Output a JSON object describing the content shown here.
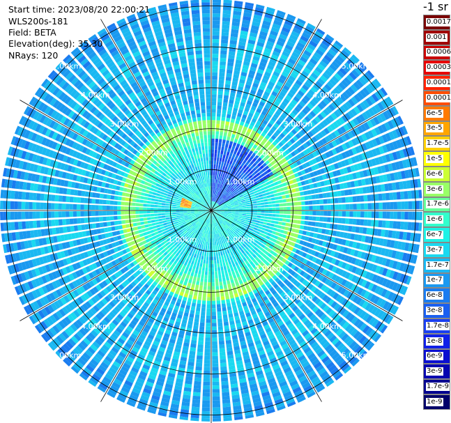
{
  "header": {
    "start_time": "Start time: 2023/08/20 22:00:21",
    "instrument": "WLS200s-181",
    "field": "Field: BETA",
    "elevation": "Elevation(deg): 35.30",
    "nrays": "NRays: 120"
  },
  "colorbar": {
    "unit_label": "-1 sr",
    "entries": [
      {
        "label": "0.0017",
        "color": "#7a0000"
      },
      {
        "label": "0.001",
        "color": "#a00000"
      },
      {
        "label": "0.0006",
        "color": "#c80000"
      },
      {
        "label": "0.0003",
        "color": "#e60000"
      },
      {
        "label": "0.00017",
        "color": "#ff2200"
      },
      {
        "label": "0.0001",
        "color": "#ff4d00"
      },
      {
        "label": "6e-5",
        "color": "#ff7a00"
      },
      {
        "label": "3e-5",
        "color": "#ffa500"
      },
      {
        "label": "1.7e-5",
        "color": "#ffd000"
      },
      {
        "label": "1e-5",
        "color": "#ffff00"
      },
      {
        "label": "6e-6",
        "color": "#ccff33"
      },
      {
        "label": "3e-6",
        "color": "#99ff66"
      },
      {
        "label": "1.7e-6",
        "color": "#66ff99"
      },
      {
        "label": "1e-6",
        "color": "#33ffcc"
      },
      {
        "label": "6e-7",
        "color": "#1ef2e6"
      },
      {
        "label": "3e-7",
        "color": "#1ad9f0"
      },
      {
        "label": "1.7e-7",
        "color": "#1ab8f2"
      },
      {
        "label": "1e-7",
        "color": "#1a99f0"
      },
      {
        "label": "6e-8",
        "color": "#1a7cf0"
      },
      {
        "label": "3e-8",
        "color": "#1a5ff0"
      },
      {
        "label": "1.7e-8",
        "color": "#1a3ff0"
      },
      {
        "label": "1e-8",
        "color": "#1020e8"
      },
      {
        "label": "6e-9",
        "color": "#0a0fd0"
      },
      {
        "label": "3e-9",
        "color": "#0505b0"
      },
      {
        "label": "1.7e-9",
        "color": "#030390"
      },
      {
        "label": "1e-9",
        "color": "#02026a"
      }
    ]
  },
  "chart_data": {
    "type": "heatmap",
    "projection": "polar PPI",
    "field": "BETA",
    "elevation_deg": 35.3,
    "n_rays": 120,
    "range_rings_km": [
      1,
      2,
      3,
      4,
      5
    ],
    "ring_labels": [
      "1.00km",
      "2.00km",
      "3.00km",
      "4.00km",
      "5.00km"
    ],
    "max_range_km": 5.1,
    "azimuth_lines_deg": [
      0,
      30,
      60,
      90,
      120,
      150,
      180,
      210,
      240,
      270,
      300,
      330
    ],
    "range_profile": [
      {
        "range_km": 0.5,
        "value": "6e-7"
      },
      {
        "range_km": 1.0,
        "value": "3e-7"
      },
      {
        "range_km": 1.5,
        "value": "6e-7"
      },
      {
        "range_km": 2.0,
        "value": "3e-6"
      },
      {
        "range_km": 2.3,
        "value": "1.7e-7"
      },
      {
        "range_km": 3.0,
        "value": "1.7e-7"
      },
      {
        "range_km": 4.0,
        "value": "1.7e-7"
      },
      {
        "range_km": 5.0,
        "value": "1e-7"
      }
    ],
    "features": [
      {
        "description": "enhanced ring",
        "range_km": 2.05,
        "value": "3e-6"
      },
      {
        "description": "low-signal sector",
        "azimuth_deg": [
          0,
          60
        ],
        "range_km": [
          0,
          1.7
        ],
        "value": "3e-8"
      },
      {
        "description": "strong return patch",
        "azimuth_deg": 285,
        "range_km": 0.6,
        "value": "3e-5"
      }
    ]
  }
}
